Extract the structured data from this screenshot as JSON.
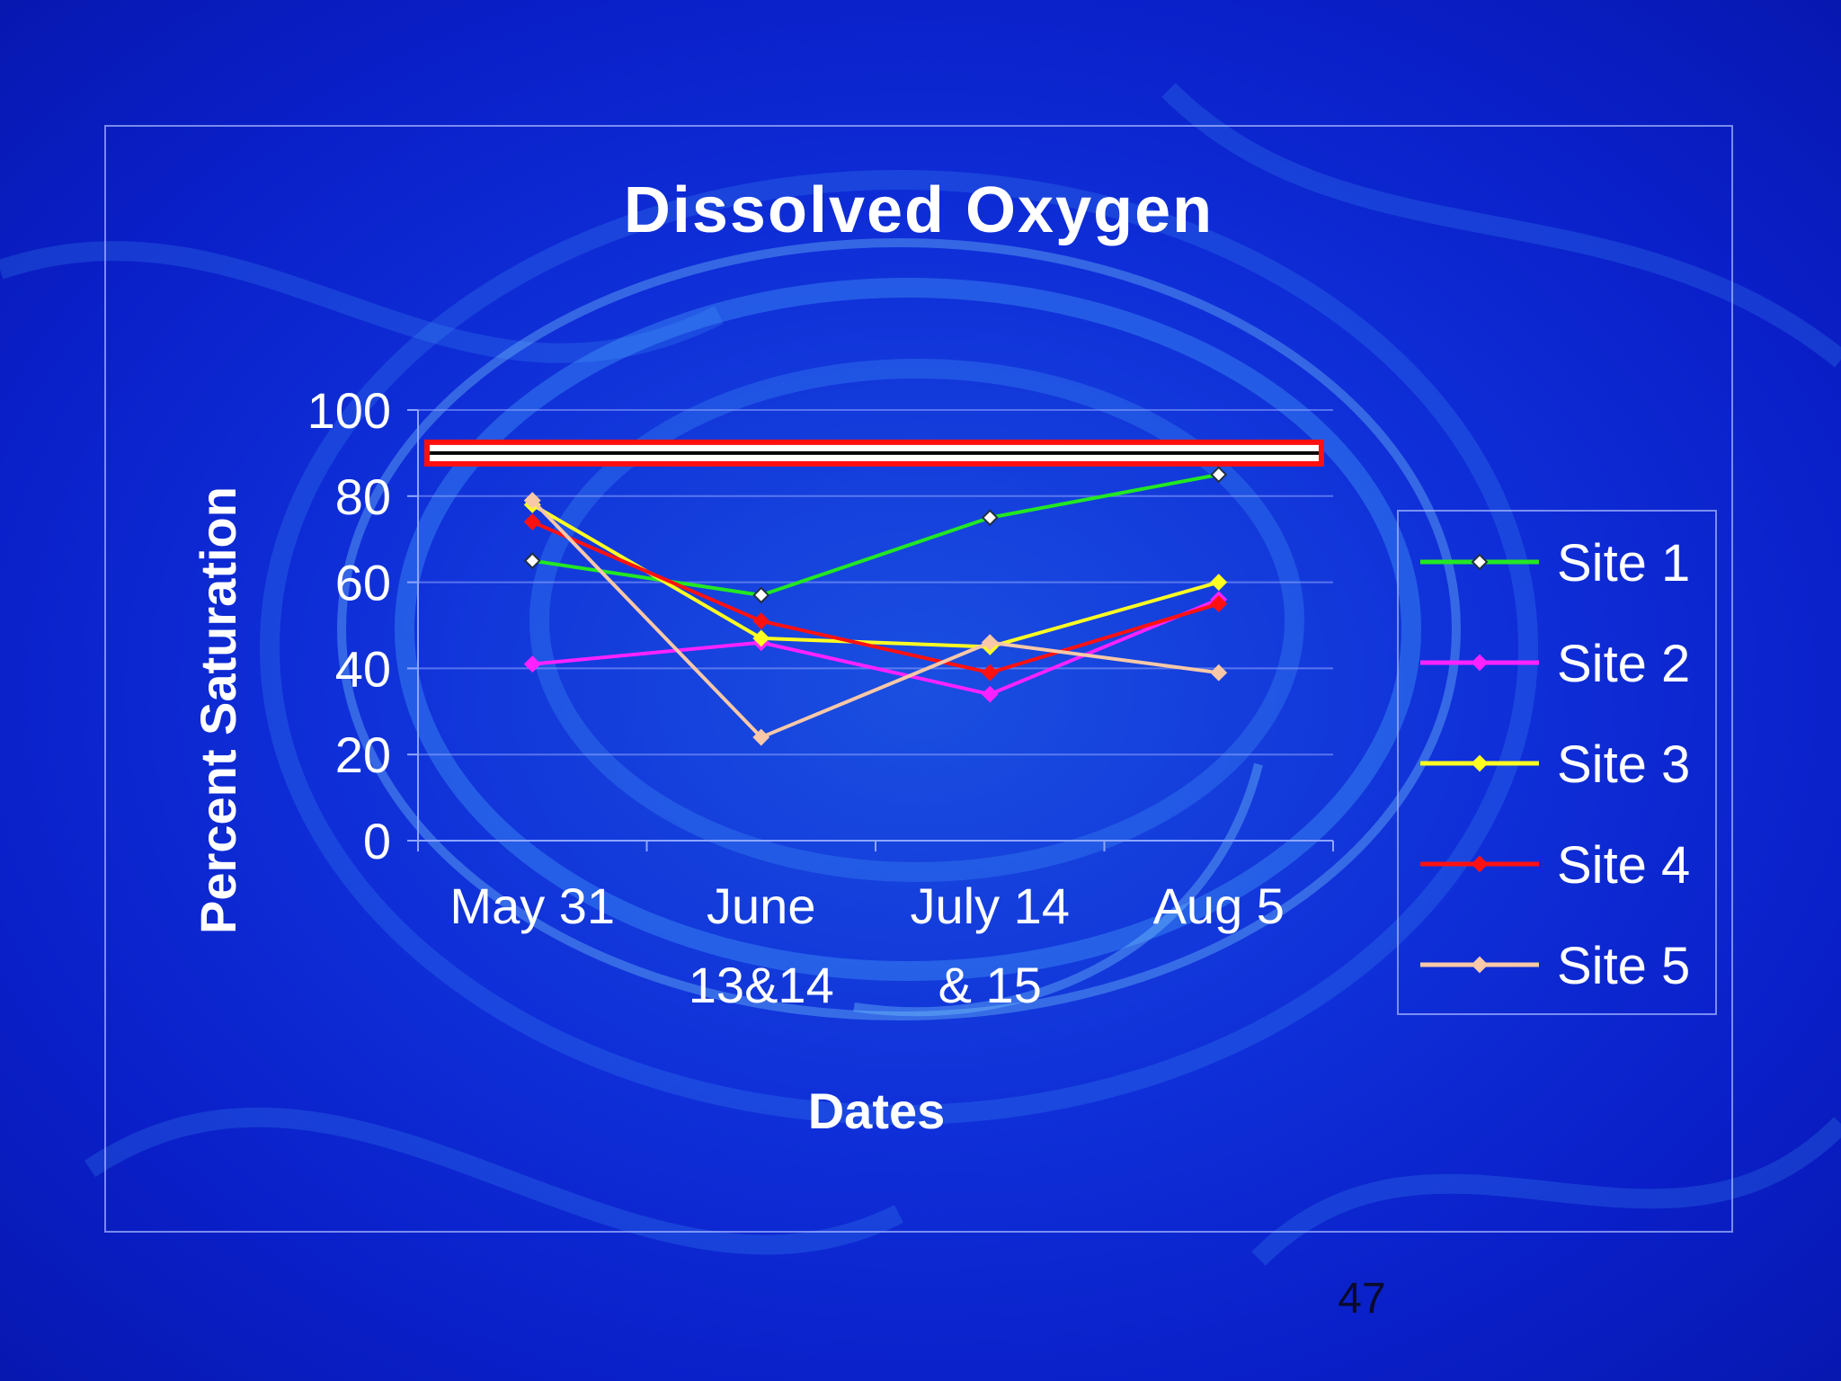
{
  "slide": {
    "page_number": "47"
  },
  "chart_data": {
    "type": "line",
    "title": "Dissolved Oxygen",
    "xlabel": "Dates",
    "ylabel": "Percent Saturation",
    "categories": [
      [
        "May 31"
      ],
      [
        "June",
        "13&14"
      ],
      [
        "July 14",
        "& 15"
      ],
      [
        "Aug 5"
      ]
    ],
    "ylim": [
      0,
      100
    ],
    "yticks": [
      0,
      20,
      40,
      60,
      80,
      100
    ],
    "grid": true,
    "legend_position": "right",
    "reference_line": {
      "value": 90
    },
    "series": [
      {
        "name": "Site 1",
        "color": "#22e822",
        "marker": "diamond-open",
        "values": [
          65,
          57,
          75,
          85
        ]
      },
      {
        "name": "Site 2",
        "color": "#ff22ff",
        "marker": "diamond",
        "values": [
          41,
          46,
          34,
          56
        ]
      },
      {
        "name": "Site 3",
        "color": "#ffff22",
        "marker": "diamond",
        "values": [
          78,
          47,
          45,
          60
        ]
      },
      {
        "name": "Site 4",
        "color": "#ff1111",
        "marker": "diamond",
        "values": [
          74,
          51,
          39,
          55
        ]
      },
      {
        "name": "Site 5",
        "color": "#f8c8a8",
        "marker": "diamond",
        "values": [
          79,
          24,
          46,
          39
        ]
      }
    ]
  }
}
